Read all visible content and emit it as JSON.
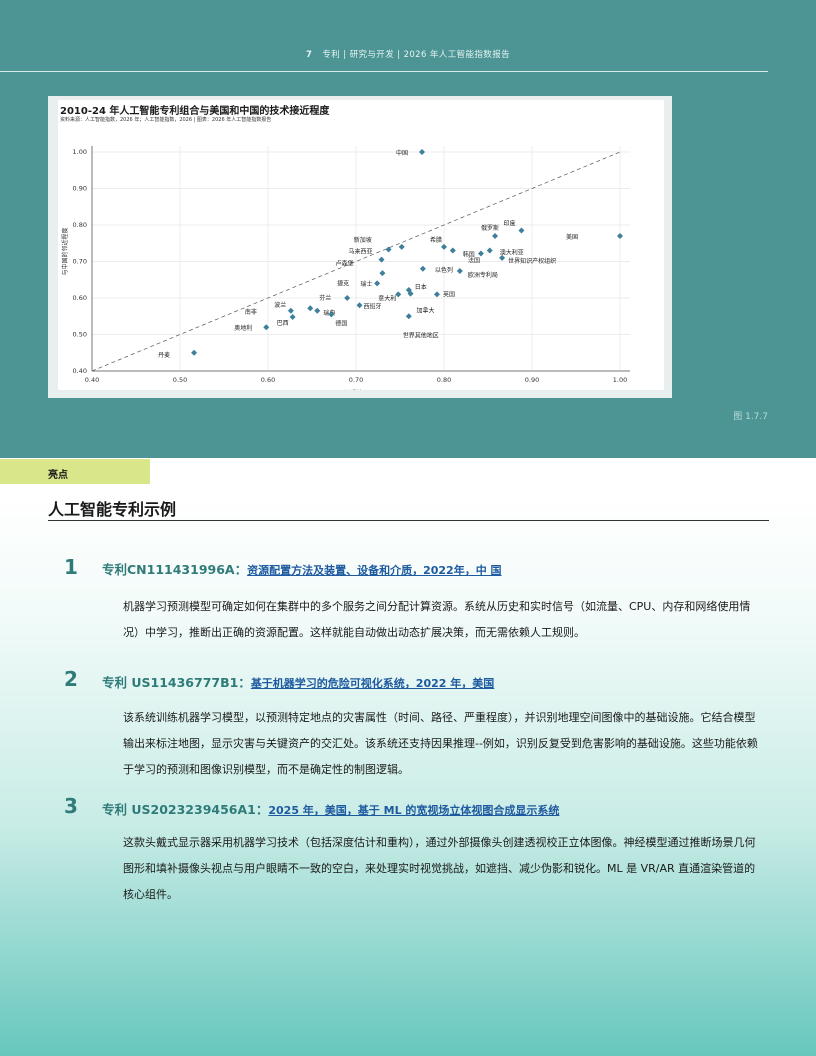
{
  "header": {
    "page_number": "7",
    "running_title": "专利 | 研究与开发 | 2026 年人工智能指数报告"
  },
  "figure_label": "图 1.7.7",
  "chart_data": {
    "type": "scatter",
    "title": "2010-24 年人工智能专利组合与美国和中国的技术接近程度",
    "source": "资料来源：人工智能指数，2026 年；人工智能指数，2026 | 图表：2026 年人工智能指数报告",
    "xlabel": "邻近美国",
    "ylabel": "与中国的邻近程度",
    "xlim": [
      0.4,
      1.0
    ],
    "ylim": [
      0.4,
      1.0
    ],
    "x_ticks": [
      "0.40",
      "0.50",
      "0.60",
      "0.70",
      "0.80",
      "0.90",
      "1.00"
    ],
    "y_ticks": [
      "0.40",
      "0.50",
      "0.60",
      "0.70",
      "0.80",
      "0.90",
      "1.00"
    ],
    "grid": true,
    "reference_line": "diagonal-dashed",
    "marker_color": "#3e7f9a",
    "points": [
      {
        "label": "中国",
        "x": 0.775,
        "y": 1.0
      },
      {
        "label": "美国",
        "x": 1.0,
        "y": 0.77
      },
      {
        "label": "印度",
        "x": 0.888,
        "y": 0.785
      },
      {
        "label": "俄罗斯",
        "x": 0.858,
        "y": 0.77
      },
      {
        "label": "希腊",
        "x": 0.8,
        "y": 0.74
      },
      {
        "label": "新加坡",
        "x": 0.752,
        "y": 0.74
      },
      {
        "label": "马来西亚",
        "x": 0.737,
        "y": 0.733
      },
      {
        "label": "澳大利亚",
        "x": 0.852,
        "y": 0.73
      },
      {
        "label": "韩国",
        "x": 0.81,
        "y": 0.73
      },
      {
        "label": "法国",
        "x": 0.842,
        "y": 0.722
      },
      {
        "label": "世界知识产权组织",
        "x": 0.866,
        "y": 0.71
      },
      {
        "label": "卢森堡",
        "x": 0.729,
        "y": 0.705
      },
      {
        "label": "以色列",
        "x": 0.776,
        "y": 0.68
      },
      {
        "label": "欧洲专利局",
        "x": 0.818,
        "y": 0.674
      },
      {
        "label": "瑞士",
        "x": 0.73,
        "y": 0.668
      },
      {
        "label": "捷克",
        "x": 0.724,
        "y": 0.64
      },
      {
        "label": "日本",
        "x": 0.76,
        "y": 0.622
      },
      {
        "label": "意大利",
        "x": 0.748,
        "y": 0.61
      },
      {
        "label": "加拿大",
        "x": 0.762,
        "y": 0.612
      },
      {
        "label": "英国",
        "x": 0.792,
        "y": 0.61
      },
      {
        "label": "芬兰",
        "x": 0.69,
        "y": 0.6
      },
      {
        "label": "西班牙",
        "x": 0.704,
        "y": 0.58
      },
      {
        "label": "波兰",
        "x": 0.648,
        "y": 0.572
      },
      {
        "label": "南非",
        "x": 0.626,
        "y": 0.565
      },
      {
        "label": "瑞典",
        "x": 0.656,
        "y": 0.565
      },
      {
        "label": "巴西",
        "x": 0.628,
        "y": 0.548
      },
      {
        "label": "德国",
        "x": 0.672,
        "y": 0.555
      },
      {
        "label": "世界其他地区",
        "x": 0.76,
        "y": 0.55
      },
      {
        "label": "奥地利",
        "x": 0.598,
        "y": 0.52
      },
      {
        "label": "丹麦",
        "x": 0.516,
        "y": 0.45
      }
    ]
  },
  "section": {
    "tag": "亮点",
    "title": "人工智能专利示例"
  },
  "patents": [
    {
      "number": "1",
      "prefix": "专利CN111431996A：",
      "link": "资源配置方法及装置、设备和介质，2022年，中 国",
      "body": "机器学习预测模型可确定如何在集群中的多个服务之间分配计算资源。系统从历史和实时信号（如流量、CPU、内存和网络使用情况）中学习，推断出正确的资源配置。这样就能自动做出动态扩展决策，而无需依赖人工规则。"
    },
    {
      "number": "2",
      "prefix": "专利 US11436777B1：",
      "link": "基于机器学习的危险可视化系统，2022 年，美国",
      "body": "该系统训练机器学习模型，以预测特定地点的灾害属性（时间、路径、严重程度），并识别地理空间图像中的基础设施。它结合模型输出来标注地图，显示灾害与关键资产的交汇处。该系统还支持因果推理--例如，识别反复受到危害影响的基础设施。这些功能依赖于学习的预测和图像识别模型，而不是确定性的制图逻辑。"
    },
    {
      "number": "3",
      "prefix": "专利 US2023239456A1：",
      "link": "2025 年，美国，基于 ML 的宽视场立体视图合成显示系统",
      "body": "这款头戴式显示器采用机器学习技术（包括深度估计和重构），通过外部摄像头创建透视校正立体图像。神经模型通过推断场景几何图形和填补摄像头视点与用户眼睛不一致的空白，来处理实时视觉挑战，如遮挡、减少伪影和锐化。ML 是 VR/AR 直通渲染管道的核心组件。"
    }
  ]
}
